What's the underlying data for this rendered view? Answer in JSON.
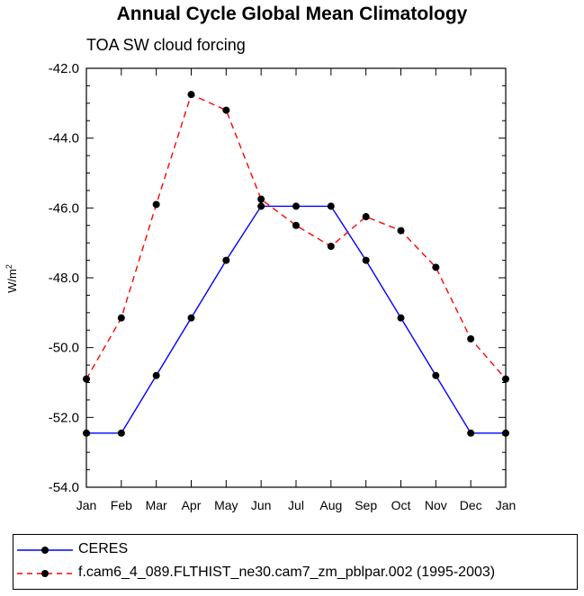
{
  "chart_data": {
    "type": "line",
    "title": "Annual Cycle Global Mean Climatology",
    "subtitle": "TOA SW cloud forcing",
    "ylabel": "W/m",
    "ylabel_sup": "2",
    "ylim": [
      -54.0,
      -42.0
    ],
    "y_ticks": [
      "-42.0",
      "-44.0",
      "-46.0",
      "-48.0",
      "-50.0",
      "-52.0",
      "-54.0"
    ],
    "y_tick_values": [
      -42,
      -44,
      -46,
      -48,
      -50,
      -52,
      -54
    ],
    "categories": [
      "Jan",
      "Feb",
      "Mar",
      "Apr",
      "May",
      "Jun",
      "Jul",
      "Aug",
      "Sep",
      "Oct",
      "Nov",
      "Dec",
      "Jan"
    ],
    "series": [
      {
        "name": "CERES",
        "color": "#0000ff",
        "dash": "solid",
        "values": [
          -52.45,
          -52.45,
          -50.8,
          -49.15,
          -47.5,
          -45.95,
          -45.95,
          -45.95,
          -47.5,
          -49.15,
          -50.8,
          -52.45,
          -52.45
        ]
      },
      {
        "name": "f.cam6_4_089.FLTHIST_ne30.cam7_zm_pblpar.002 (1995-2003)",
        "color": "#ff0000",
        "dash": "dashed",
        "values": [
          -50.9,
          -49.15,
          -45.9,
          -42.75,
          -43.2,
          -45.75,
          -46.5,
          -47.1,
          -46.25,
          -46.65,
          -47.7,
          -49.75,
          -50.9
        ]
      }
    ],
    "marker_color": "#000000",
    "legend_position": "bottom"
  }
}
